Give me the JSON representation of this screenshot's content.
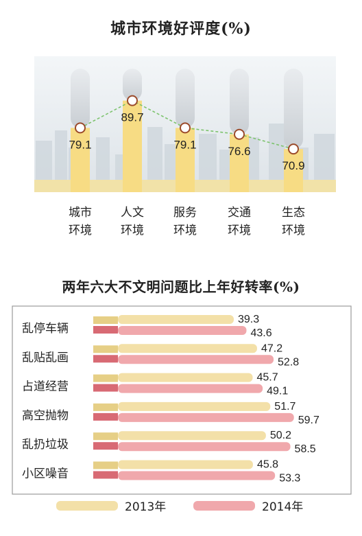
{
  "chart_data": [
    {
      "type": "line",
      "title": "城市环境好评度(%)",
      "categories": [
        "城市环境",
        "人文环境",
        "服务环境",
        "交通环境",
        "生态环境"
      ],
      "values": [
        79.1,
        89.7,
        79.1,
        76.6,
        70.9
      ],
      "value_labels": [
        "79.1",
        "89.7",
        "79.1",
        "76.6",
        "70.9"
      ],
      "category_lines": [
        [
          "城市",
          "环境"
        ],
        [
          "人文",
          "环境"
        ],
        [
          "服务",
          "环境"
        ],
        [
          "交通",
          "环境"
        ],
        [
          "生态",
          "环境"
        ]
      ],
      "colors": {
        "pillar": "#f7dc84",
        "marker_stroke": "#9b4a2a",
        "line": "#7cc36c"
      }
    },
    {
      "type": "bar",
      "orientation": "horizontal",
      "title": "两年六大不文明问题比上年好转率(%)",
      "categories": [
        "乱停车辆",
        "乱贴乱画",
        "占道经营",
        "高空抛物",
        "乱扔垃圾",
        "小区噪音"
      ],
      "series": [
        {
          "name": "2013年",
          "values": [
            39.3,
            47.2,
            45.7,
            51.7,
            50.2,
            45.8
          ],
          "labels": [
            "39.3",
            "47.2",
            "45.7",
            "51.7",
            "50.2",
            "45.8"
          ],
          "color": "#f3e0a8"
        },
        {
          "name": "2014年",
          "values": [
            43.6,
            52.8,
            49.1,
            59.7,
            58.5,
            53.3
          ],
          "labels": [
            "43.6",
            "52.8",
            "49.1",
            "59.7",
            "58.5",
            "53.3"
          ],
          "color": "#f0a8ac"
        }
      ]
    }
  ]
}
